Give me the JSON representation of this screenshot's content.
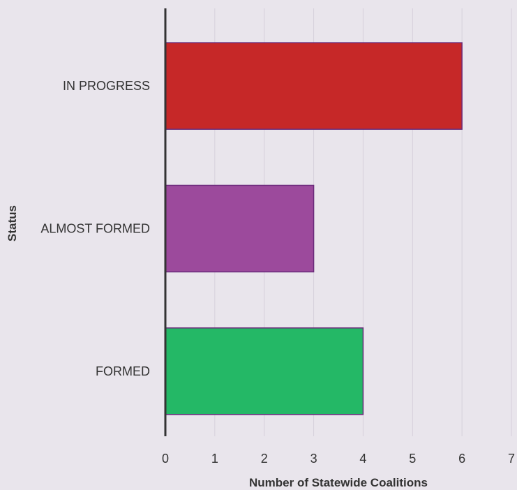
{
  "chart_data": {
    "type": "bar",
    "orientation": "horizontal",
    "title": "",
    "xlabel": "Number of Statewide Coalitions",
    "ylabel": "Status",
    "categories": [
      "IN PROGRESS",
      "ALMOST FORMED",
      "FORMED"
    ],
    "values": [
      6,
      3,
      4
    ],
    "colors": [
      "#c62828",
      "#9c4a9c",
      "#24b866"
    ],
    "bar_edge_color": "#6a2a7a",
    "xlim": [
      0,
      7
    ],
    "xticks": [
      "0",
      "1",
      "2",
      "3",
      "4",
      "5",
      "6",
      "7"
    ],
    "grid": "vertical",
    "grid_color": "#d6d0db",
    "axis_color": "#333333",
    "background": "#e9e5ec"
  }
}
